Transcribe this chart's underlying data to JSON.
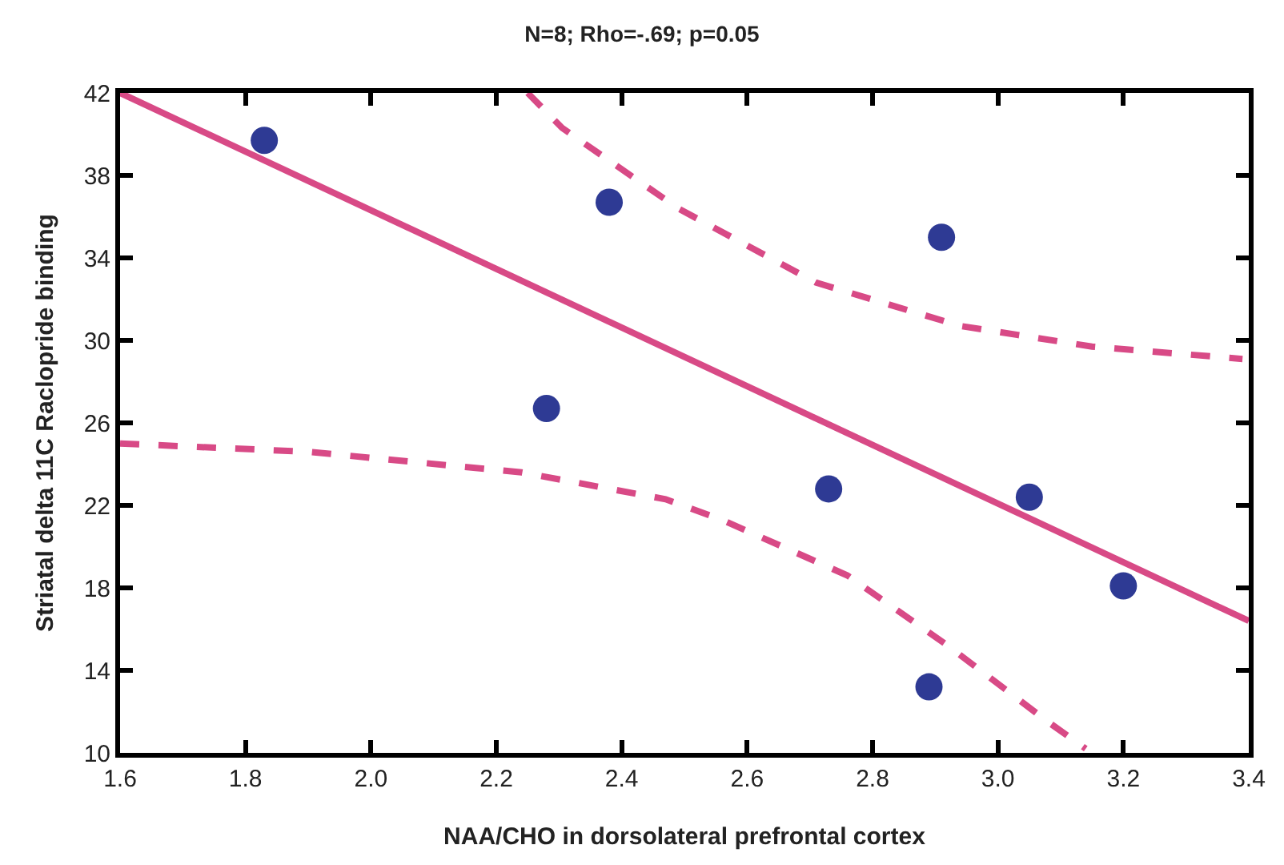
{
  "chart_data": {
    "type": "scatter",
    "title": "N=8; Rho=-.69; p=0.05",
    "xlabel": "NAA/CHO in dorsolateral prefrontal cortex",
    "ylabel": "Striatal delta 11C Raclopride binding",
    "series": [
      {
        "type": "line",
        "color": "#d84a86",
        "line_style": "solid",
        "x": [
          1.6,
          3.4
        ],
        "values": [
          42,
          16.4
        ]
      },
      {
        "type": "line",
        "color": "#d84a86",
        "line_style": "dashed",
        "x": [
          2.25,
          2.305,
          2.49,
          2.71,
          2.94,
          3.15,
          3.39
        ],
        "values": [
          42,
          40.3,
          36.4,
          32.8,
          30.7,
          29.7,
          29.1
        ]
      },
      {
        "type": "line",
        "color": "#d84a86",
        "line_style": "dashed",
        "x": [
          1.6,
          1.9,
          2.24,
          2.47,
          2.56,
          2.76,
          2.92,
          3.08,
          3.14
        ],
        "values": [
          25.0,
          24.6,
          23.6,
          22.3,
          21.3,
          18.6,
          15.2,
          11.5,
          10.2
        ]
      },
      {
        "color": "#2e3a94",
        "marker": "circle",
        "x": [
          1.83,
          2.38,
          2.91,
          2.28,
          2.73,
          3.05,
          3.2,
          2.89
        ],
        "values": [
          39.7,
          36.7,
          35.0,
          26.7,
          22.8,
          22.4,
          18.1,
          13.2
        ]
      }
    ],
    "xlim": [
      1.6,
      3.4
    ],
    "xticks": [
      1.6,
      1.8,
      {
        "value": 2,
        "label": "2.0"
      },
      2.2,
      2.4,
      2.6,
      2.8,
      {
        "value": 3,
        "label": "3.0"
      },
      3.2,
      3.4
    ],
    "ylim": [
      10,
      42
    ],
    "yticks": [
      10,
      14,
      18,
      22,
      26,
      30,
      34,
      38,
      42
    ],
    "grid": false
  }
}
